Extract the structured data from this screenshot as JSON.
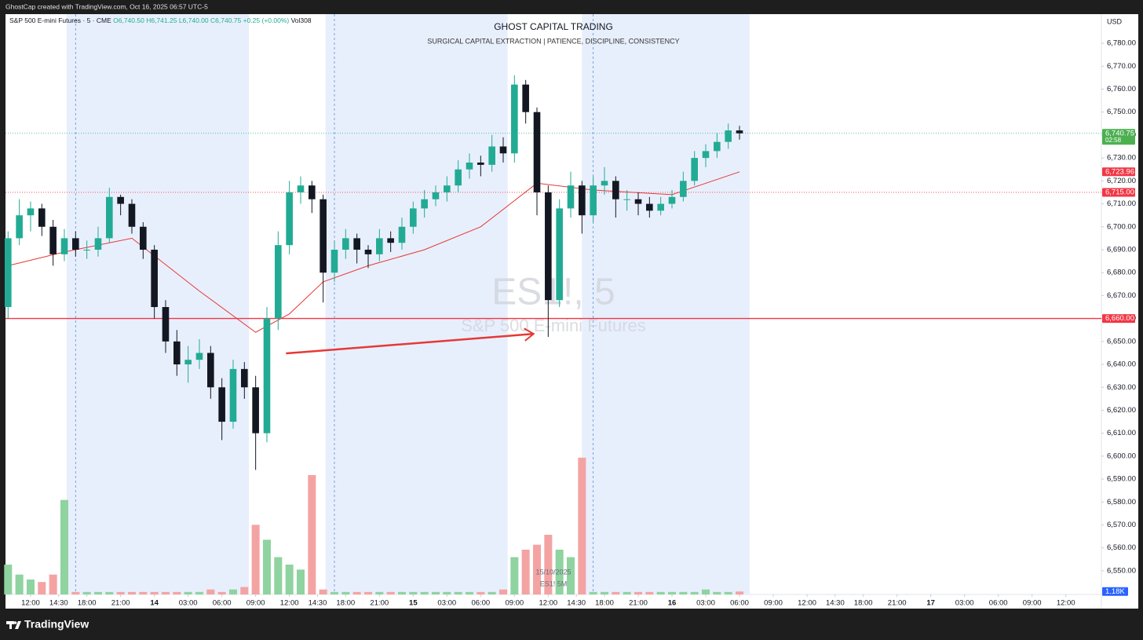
{
  "top_bar": "GhostCap created with TradingView.com, Oct 16, 2025 06:57 UTC-5",
  "footer": {
    "brand": "TradingView"
  },
  "chart_data": {
    "type": "candlestick",
    "title": "GHOST CAPITAL TRADING",
    "subtitle": "SURGICAL CAPITAL EXTRACTION |  PATIENCE, DISCIPLINE, CONSISTENCY",
    "legend": {
      "symbol": "S&P 500 E-mini Futures · 5 · CME",
      "ohlc": [
        "O6,740.50",
        "H6,741.25",
        "L6,740.00",
        "C6,740.75",
        "+0.25 (+0.00%)"
      ],
      "volume": "Vol308"
    },
    "watermark": {
      "symbol": "ES1!, 5",
      "name": "S&P 500 E-mini Futures"
    },
    "currency": "USD",
    "up_color": "#22ab94",
    "down_color": "#131722",
    "volume_up_color": "#8fd3a0",
    "volume_down_color": "#f4a3a3",
    "x": [
      -2,
      -1,
      0,
      1,
      2,
      3,
      4,
      5,
      6,
      7,
      8,
      9,
      10,
      11,
      12,
      13,
      14,
      15,
      16,
      17,
      18,
      19,
      20,
      21,
      22,
      23,
      24,
      25,
      26,
      27,
      28,
      29,
      30,
      31,
      32,
      33,
      34,
      35,
      36,
      37,
      38,
      39,
      40,
      41,
      42,
      43,
      44,
      45,
      46,
      47,
      48,
      49,
      50,
      51,
      52,
      53,
      54,
      55,
      56,
      57,
      58,
      59,
      60,
      61,
      62,
      63
    ],
    "open": [
      6665,
      6695,
      6705,
      6708,
      6700,
      6688,
      6695,
      6690,
      6690,
      6695,
      6713,
      6710,
      6700,
      6690,
      6665,
      6650,
      6640,
      6642,
      6645,
      6630,
      6615,
      6638,
      6630,
      6610,
      6660,
      6692,
      6715,
      6718,
      6712,
      6680,
      6690,
      6695,
      6690,
      6688,
      6695,
      6693,
      6700,
      6708,
      6712,
      6715,
      6718,
      6725,
      6728,
      6727,
      6735,
      6732,
      6762,
      6750,
      6715,
      6668,
      6708,
      6718,
      6705,
      6718,
      6720,
      6712,
      6712,
      6710,
      6707,
      6710,
      6713,
      6720,
      6730,
      6733,
      6737,
      6742
    ],
    "high": [
      6698,
      6712,
      6711,
      6710,
      6703,
      6699,
      6698,
      6694,
      6700,
      6717,
      6714,
      6712,
      6702,
      6692,
      6668,
      6655,
      6648,
      6651,
      6648,
      6634,
      6642,
      6641,
      6635,
      6665,
      6698,
      6720,
      6722,
      6720,
      6714,
      6694,
      6699,
      6697,
      6692,
      6699,
      6698,
      6704,
      6711,
      6716,
      6718,
      6722,
      6729,
      6732,
      6731,
      6740,
      6739,
      6766,
      6764,
      6752,
      6718,
      6712,
      6724,
      6720,
      6722,
      6726,
      6722,
      6716,
      6715,
      6713,
      6713,
      6716,
      6724,
      6733,
      6736,
      6741,
      6745,
      6744
    ],
    "low": [
      6660,
      6692,
      6698,
      6696,
      6683,
      6685,
      6687,
      6686,
      6687,
      6693,
      6705,
      6697,
      6686,
      6660,
      6645,
      6635,
      6632,
      6638,
      6625,
      6607,
      6612,
      6625,
      6594,
      6606,
      6655,
      6688,
      6710,
      6706,
      6667,
      6676,
      6686,
      6684,
      6682,
      6685,
      6689,
      6690,
      6697,
      6704,
      6709,
      6711,
      6715,
      6721,
      6722,
      6724,
      6728,
      6728,
      6745,
      6705,
      6652,
      6665,
      6704,
      6697,
      6702,
      6714,
      6704,
      6707,
      6705,
      6704,
      6705,
      6708,
      6711,
      6718,
      6726,
      6730,
      6734,
      6738
    ],
    "close": [
      6695,
      6705,
      6708,
      6700,
      6688,
      6695,
      6690,
      6690,
      6695,
      6713,
      6710,
      6700,
      6690,
      6665,
      6650,
      6640,
      6642,
      6645,
      6630,
      6615,
      6638,
      6630,
      6610,
      6660,
      6692,
      6715,
      6718,
      6712,
      6680,
      6690,
      6695,
      6690,
      6688,
      6695,
      6693,
      6700,
      6708,
      6712,
      6715,
      6718,
      6725,
      6728,
      6727,
      6735,
      6732,
      6762,
      6750,
      6715,
      6668,
      6708,
      6718,
      6705,
      6718,
      6720,
      6712,
      6712,
      6710,
      6707,
      6710,
      6713,
      6720,
      6730,
      6733,
      6737,
      6742,
      6740.75
    ],
    "volume": [
      12,
      8,
      6,
      5,
      8,
      38,
      1,
      1,
      1,
      1,
      1,
      1,
      1,
      1,
      1,
      1,
      1,
      1,
      2,
      1,
      2,
      3,
      28,
      22,
      15,
      12,
      10,
      48,
      2,
      1,
      1,
      1,
      1,
      1,
      1,
      1,
      1,
      1,
      1,
      1,
      1,
      1,
      1,
      1,
      2,
      15,
      18,
      20,
      24,
      18,
      15,
      55,
      1,
      1,
      1,
      1,
      1,
      1,
      1,
      1,
      1,
      1,
      2,
      1,
      1,
      1.18
    ],
    "volume_ylim": [
      0,
      60
    ],
    "moving_average": {
      "color": "#e53935",
      "x": [
        -2,
        3,
        9,
        15,
        20,
        23,
        26,
        30,
        35,
        40,
        45,
        50,
        57,
        63
      ],
      "values": [
        6683,
        6689,
        6695,
        6672,
        6654,
        6662,
        6676,
        6683,
        6690,
        6700,
        6719,
        6716,
        6714,
        6723.96
      ]
    },
    "xlim": [
      -2.23,
      95.16
    ],
    "ylim": [
      6539.7,
      6792.7
    ],
    "xticks": [
      {
        "value": 0,
        "label": "12:00"
      },
      {
        "value": 2.5,
        "label": "14:30"
      },
      {
        "value": 5,
        "label": "18:00"
      },
      {
        "value": 8,
        "label": "21:00"
      },
      {
        "value": 11,
        "label": "14"
      },
      {
        "value": 14,
        "label": "03:00"
      },
      {
        "value": 17,
        "label": "06:00"
      },
      {
        "value": 20,
        "label": "09:00"
      },
      {
        "value": 23,
        "label": "12:00"
      },
      {
        "value": 25.5,
        "label": "14:30"
      },
      {
        "value": 28,
        "label": "18:00"
      },
      {
        "value": 31,
        "label": "21:00"
      },
      {
        "value": 34,
        "label": "15"
      },
      {
        "value": 37,
        "label": "03:00"
      },
      {
        "value": 40,
        "label": "06:00"
      },
      {
        "value": 43,
        "label": "09:00"
      },
      {
        "value": 46,
        "label": "12:00"
      },
      {
        "value": 48.5,
        "label": "14:30"
      },
      {
        "value": 51,
        "label": "18:00"
      },
      {
        "value": 54,
        "label": "21:00"
      },
      {
        "value": 57,
        "label": "16"
      },
      {
        "value": 60,
        "label": "03:00"
      },
      {
        "value": 63,
        "label": "06:00"
      },
      {
        "value": 66,
        "label": "09:00"
      },
      {
        "value": 69,
        "label": "12:00"
      },
      {
        "value": 71.5,
        "label": "14:30"
      },
      {
        "value": 74,
        "label": "18:00"
      },
      {
        "value": 77,
        "label": "21:00"
      },
      {
        "value": 80,
        "label": "17"
      },
      {
        "value": 83,
        "label": "03:00"
      },
      {
        "value": 86,
        "label": "06:00"
      },
      {
        "value": 89,
        "label": "09:00"
      },
      {
        "value": 92,
        "label": "12:00"
      }
    ],
    "yticks": [
      {
        "value": 6550,
        "label": "6,550.00"
      },
      {
        "value": 6560,
        "label": "6,560.00"
      },
      {
        "value": 6570,
        "label": "6,570.00"
      },
      {
        "value": 6580,
        "label": "6,580.00"
      },
      {
        "value": 6590,
        "label": "6,590.00"
      },
      {
        "value": 6600,
        "label": "6,600.00"
      },
      {
        "value": 6610,
        "label": "6,610.00"
      },
      {
        "value": 6620,
        "label": "6,620.00"
      },
      {
        "value": 6630,
        "label": "6,630.00"
      },
      {
        "value": 6640,
        "label": "6,640.00"
      },
      {
        "value": 6650,
        "label": "6,650.00"
      },
      {
        "value": 6660,
        "label": "6,660.00"
      },
      {
        "value": 6670,
        "label": "6,670.00"
      },
      {
        "value": 6680,
        "label": "6,680.00"
      },
      {
        "value": 6690,
        "label": "6,690.00"
      },
      {
        "value": 6700,
        "label": "6,700.00"
      },
      {
        "value": 6710,
        "label": "6,710.00"
      },
      {
        "value": 6720,
        "label": "6,720.00"
      },
      {
        "value": 6730,
        "label": "6,730.00"
      },
      {
        "value": 6740,
        "label": "6,740.00"
      },
      {
        "value": 6750,
        "label": "6,750.00"
      },
      {
        "value": 6760,
        "label": "6,760.00"
      },
      {
        "value": 6770,
        "label": "6,770.00"
      },
      {
        "value": 6780,
        "label": "6,780.00"
      }
    ],
    "session_shading": {
      "color": "#e8effc",
      "ranges": [
        [
          3.2,
          19.4
        ],
        [
          26.2,
          42.4
        ],
        [
          49.0,
          63.9
        ]
      ]
    },
    "session_breaks": [
      4,
      27,
      50
    ],
    "hlines": [
      {
        "value": 6660,
        "color": "#f23645",
        "dash": "none"
      },
      {
        "value": 6715,
        "color": "#f23645",
        "dash": "1 2"
      },
      {
        "value": 6740.75,
        "color": "#22ab94",
        "dash": "1 2"
      }
    ],
    "price_tags": [
      {
        "value": 6740.75,
        "label": "6,740.75",
        "countdown": "02:58",
        "color": "#4caf50"
      },
      {
        "value": 6723.96,
        "label": "6,723.96",
        "color": "#f23645"
      },
      {
        "value": 6715,
        "label": "6,715.00",
        "color": "#f23645"
      },
      {
        "value": 6660,
        "label": "6,660.00",
        "color": "#f23645"
      }
    ],
    "volume_tag": {
      "value": 1.18,
      "label": "1.18K",
      "color": "#2962ff"
    },
    "arrow": {
      "color": "#e53935",
      "from": {
        "x": 22.7,
        "y": 6644.8
      },
      "to": {
        "x": 44.7,
        "y": 6653.3
      }
    },
    "crosshair_labels": [
      "15/10/2025",
      "ES1! 5M"
    ]
  }
}
